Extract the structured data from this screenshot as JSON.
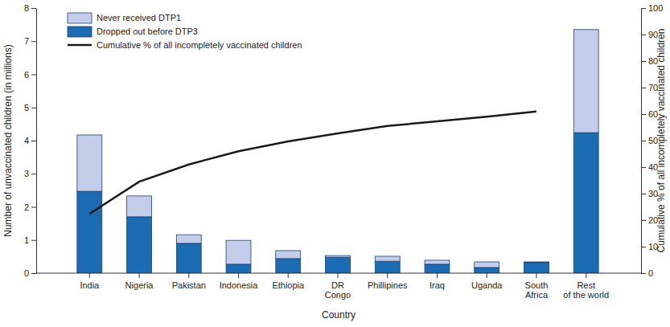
{
  "chart_data": {
    "type": "bar",
    "stacked": true,
    "legend": "upper left",
    "xlabel": "Country",
    "ylabel": "Number of unvaccinated children (in millions)",
    "y2label": "Cumulative % of all incompletely vaccinated children",
    "categories": [
      "India",
      "Nigeria",
      "Pakistan",
      "Indonesia",
      "Ethiopia",
      "DR Congo",
      "Phillipines",
      "Iraq",
      "Uganda",
      "South Africa",
      "Rest of the world"
    ],
    "ylim": [
      0,
      8
    ],
    "yticks": [
      0,
      1,
      2,
      3,
      4,
      5,
      6,
      7,
      8
    ],
    "y2lim": [
      0,
      100
    ],
    "y2ticks": [
      0,
      10,
      20,
      30,
      40,
      50,
      60,
      70,
      80,
      90,
      100
    ],
    "series": [
      {
        "name": "Never received DTP1",
        "type": "bar",
        "color": "#c3cde9",
        "values": [
          1.7,
          0.63,
          0.26,
          0.72,
          0.24,
          0.05,
          0.15,
          0.12,
          0.17,
          0.02,
          3.11
        ]
      },
      {
        "name": "Dropped out before DTP3",
        "type": "bar",
        "color": "#1c6cb4",
        "values": [
          2.47,
          1.7,
          0.9,
          0.27,
          0.44,
          0.48,
          0.36,
          0.27,
          0.17,
          0.32,
          4.24
        ]
      },
      {
        "name": "Cumulative % of all incompletely vaccinated children",
        "type": "line",
        "axis": "y2",
        "color": "#1a1a1a",
        "values": [
          22.4,
          34.5,
          41,
          46,
          49.7,
          52.7,
          55.5,
          57.3,
          59,
          61,
          null
        ]
      }
    ]
  }
}
